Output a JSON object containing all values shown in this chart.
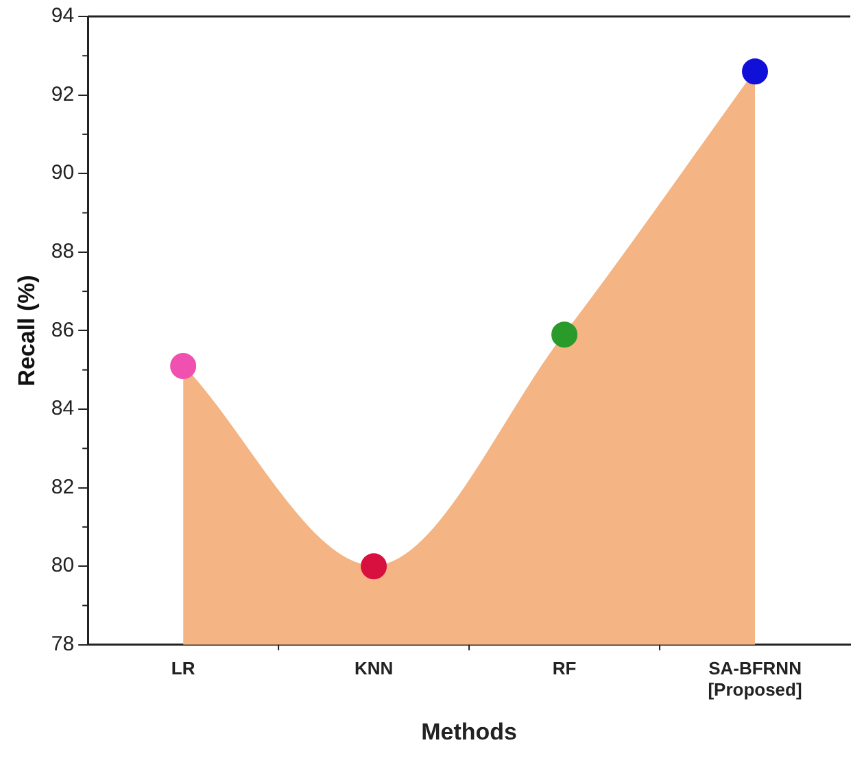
{
  "chart_data": {
    "type": "area",
    "xlabel": "Methods",
    "ylabel": "Recall (%)",
    "categories": [
      "LR",
      "KNN",
      "RF",
      "SA-BFRNN\n[Proposed]"
    ],
    "series": [
      {
        "color": "#f4b483",
        "values": [
          85.1,
          80.0,
          85.9,
          92.6
        ],
        "colors": [
          "#f050b0",
          "#d81040",
          "#2a9a2a",
          "#1010d8"
        ]
      }
    ],
    "ylim": [
      78,
      94
    ],
    "yticks": [
      78,
      80,
      82,
      84,
      86,
      88,
      90,
      92,
      94
    ],
    "grid": false,
    "legend": false,
    "marker": "circle"
  }
}
